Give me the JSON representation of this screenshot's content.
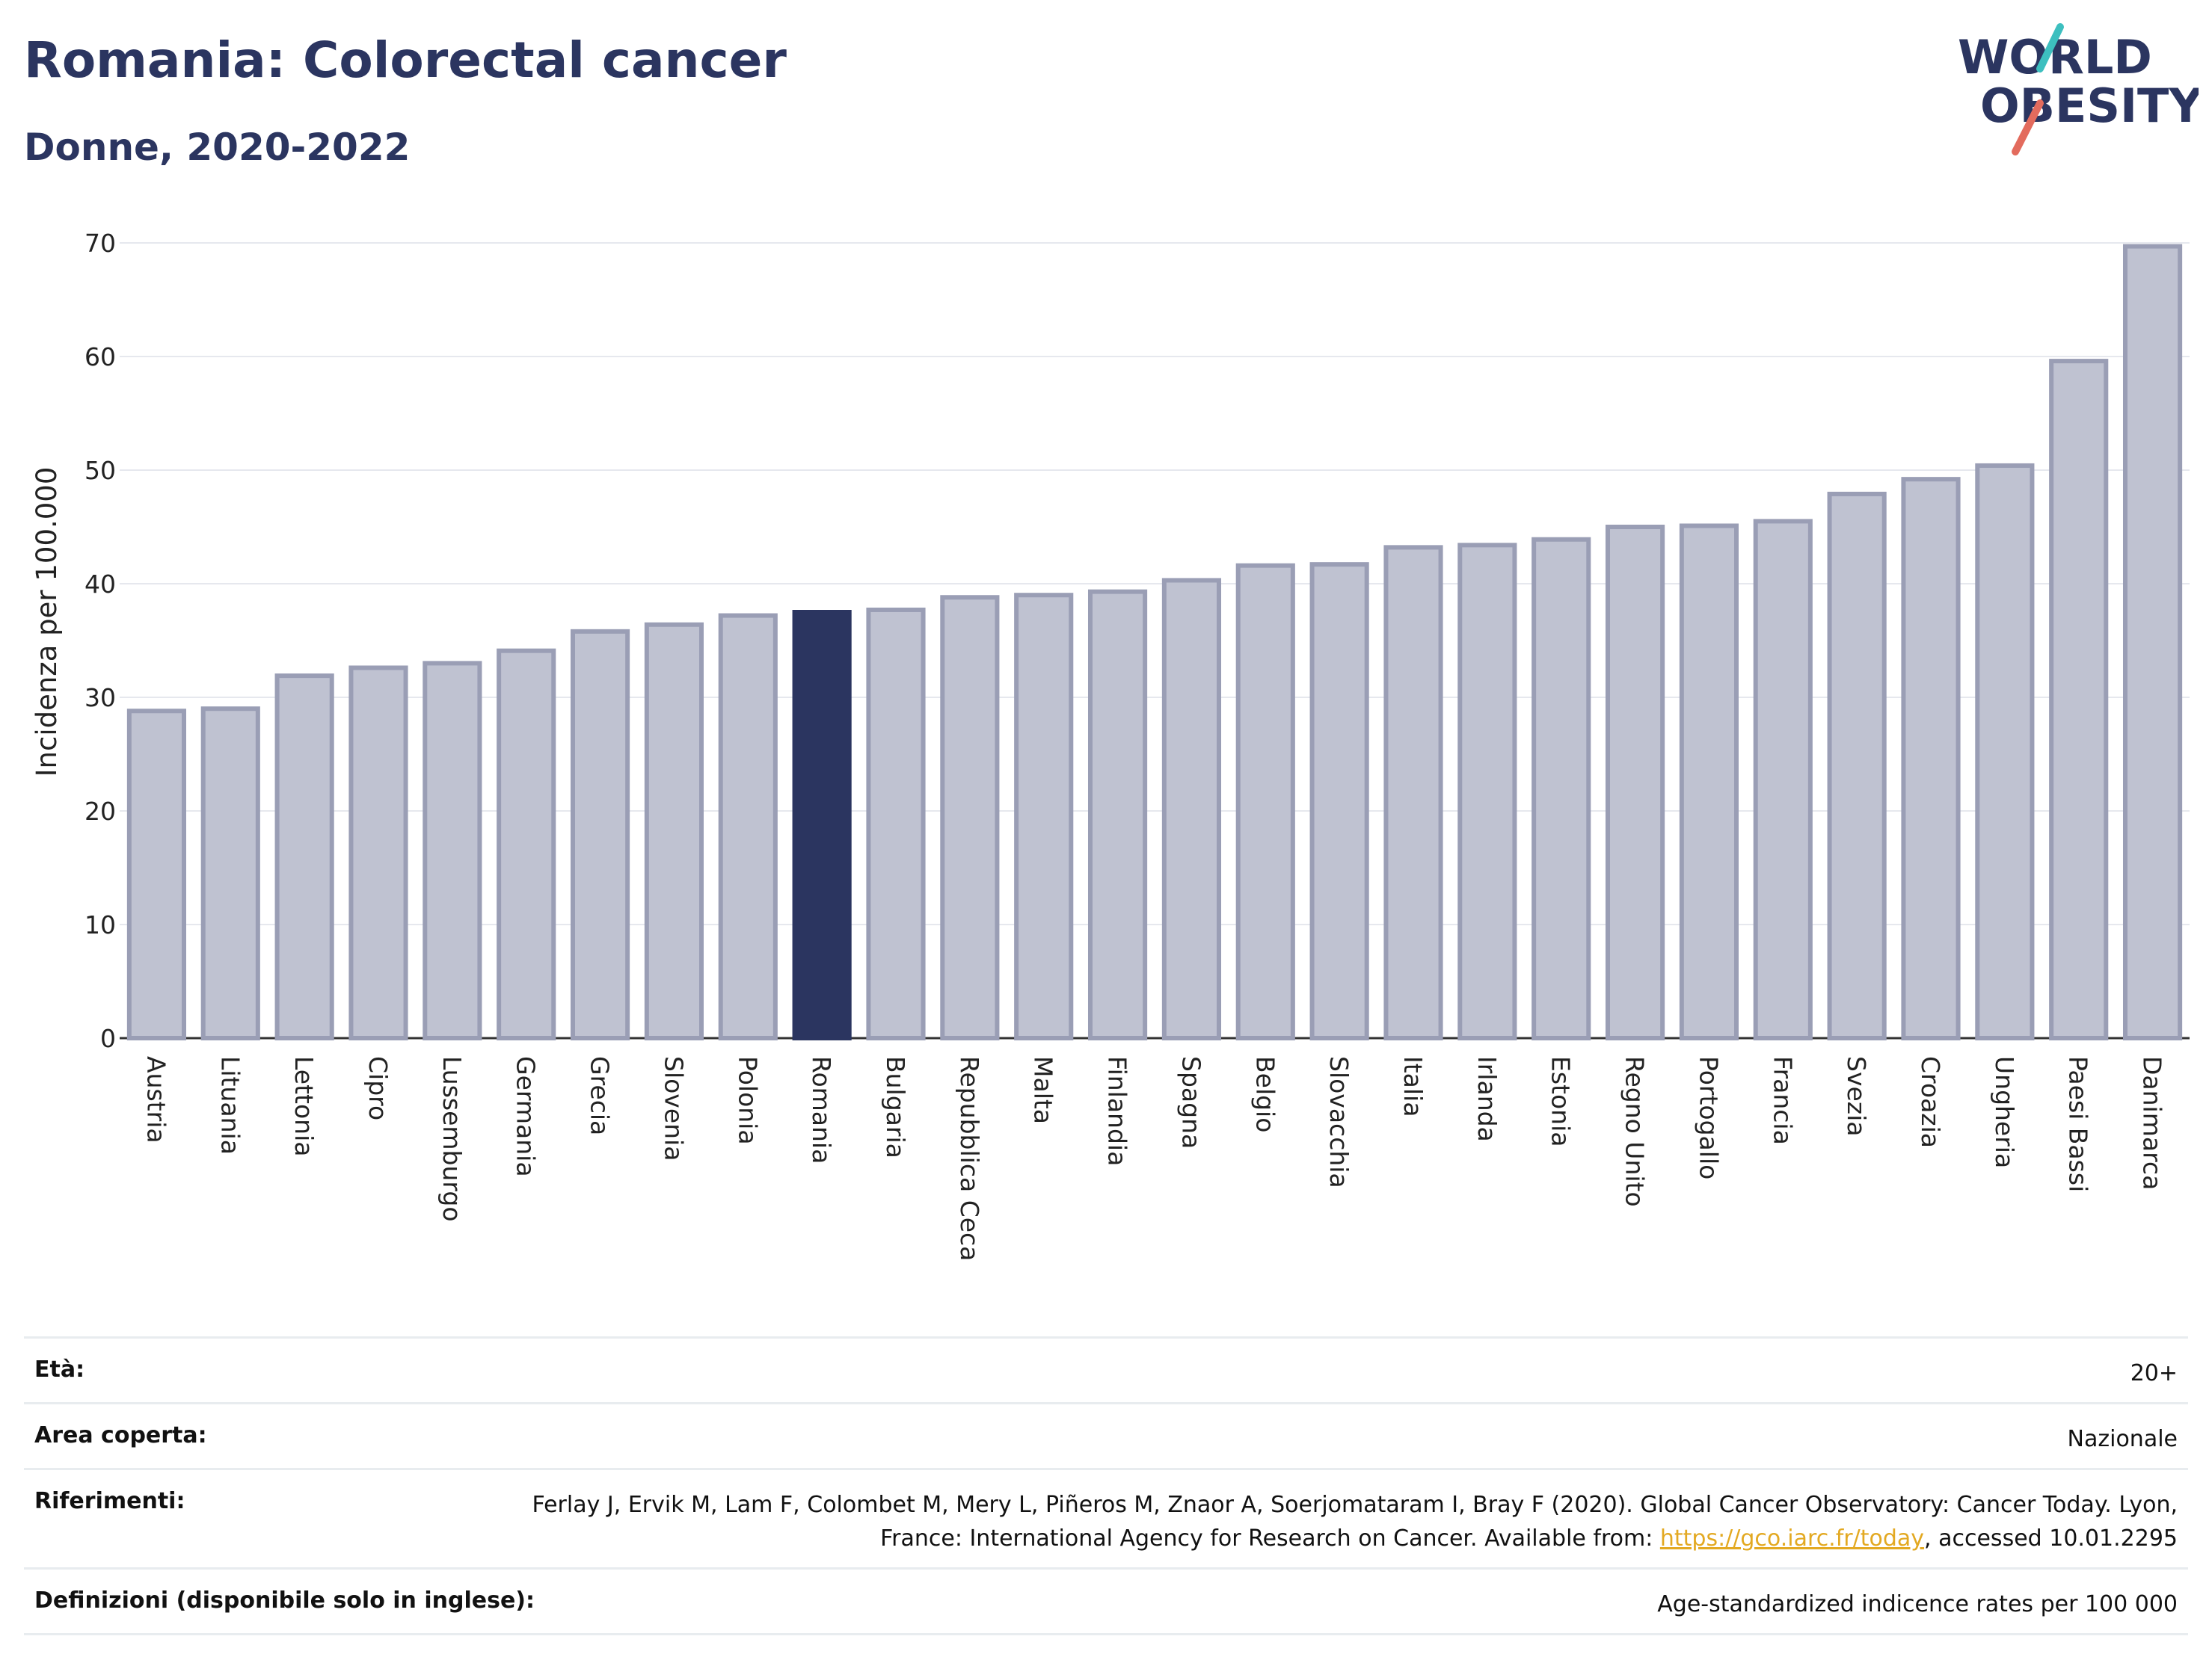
{
  "title": "Romania: Colorectal cancer",
  "subtitle": "Donne, 2020-2022",
  "logo": {
    "line1": "WORLD",
    "line2": "OBESITY"
  },
  "colors": {
    "highlight": "#2b3560",
    "bar": "#bfc2d1",
    "bar_edge": "#9a9eb5",
    "title": "#2b3560",
    "link": "#e3a922"
  },
  "chart_data": {
    "type": "bar",
    "highlight": "Romania",
    "categories": [
      "Austria",
      "Lituania",
      "Lettonia",
      "Cipro",
      "Lussemburgo",
      "Germania",
      "Grecia",
      "Slovenia",
      "Polonia",
      "Romania",
      "Bulgaria",
      "Repubblica Ceca",
      "Malta",
      "Finlandia",
      "Spagna",
      "Belgio",
      "Slovacchia",
      "Italia",
      "Irlanda",
      "Estonia",
      "Regno Unito",
      "Portogallo",
      "Francia",
      "Svezia",
      "Croazia",
      "Ungheria",
      "Paesi Bassi",
      "Danimarca"
    ],
    "values": [
      28.8,
      29.0,
      31.9,
      32.6,
      33.0,
      34.1,
      35.8,
      36.4,
      37.2,
      37.5,
      37.7,
      38.8,
      39.0,
      39.3,
      40.3,
      41.6,
      41.7,
      43.2,
      43.4,
      43.9,
      45.0,
      45.1,
      45.5,
      47.9,
      49.2,
      50.4,
      59.6,
      69.7
    ],
    "ylabel": "Incidenza per 100.000",
    "ylim": [
      0,
      70
    ],
    "yticks": [
      "0",
      "10",
      "20",
      "30",
      "40",
      "50",
      "60",
      "70"
    ],
    "grid": true
  },
  "info": {
    "age_label": "Età:",
    "age_value": "20+",
    "area_label": "Area coperta:",
    "area_value": "Nazionale",
    "ref_label": "Riferimenti:",
    "ref_text_1": "Ferlay J, Ervik M, Lam F, Colombet M, Mery L, Piñeros M, Znaor A, Soerjomataram I, Bray F (2020). Global Cancer Observatory: Cancer Today. Lyon, France: International Agency for Research on Cancer. Available from: ",
    "ref_link": "https://gco.iarc.fr/today",
    "ref_text_2": ", accessed 10.01.2295",
    "def_label": "Definizioni (disponibile solo in inglese):",
    "def_value": "Age-standardized indicence rates per 100 000"
  }
}
